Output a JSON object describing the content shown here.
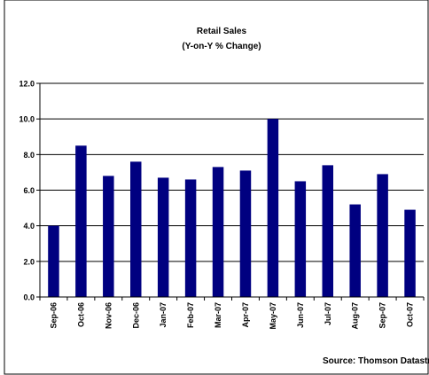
{
  "chart_data": {
    "type": "bar",
    "title": "Retail Sales",
    "subtitle": "(Y-on-Y % Change)",
    "source": "Source: Thomson Datastrea",
    "categories": [
      "Sep-06",
      "Oct-06",
      "Nov-06",
      "Dec-06",
      "Jan-07",
      "Feb-07",
      "Mar-07",
      "Apr-07",
      "May-07",
      "Jun-07",
      "Jul-07",
      "Aug-07",
      "Sep-07",
      "Oct-07"
    ],
    "values": [
      4.0,
      8.5,
      6.8,
      7.6,
      6.7,
      6.6,
      7.3,
      7.1,
      10.0,
      6.5,
      7.4,
      5.2,
      6.9,
      4.9
    ],
    "yticks": [
      "0.0",
      "2.0",
      "4.0",
      "6.0",
      "8.0",
      "10.0",
      "12.0"
    ],
    "ylim": [
      0,
      12
    ],
    "grid": true,
    "legend": "none",
    "bar_color": "#000080"
  }
}
